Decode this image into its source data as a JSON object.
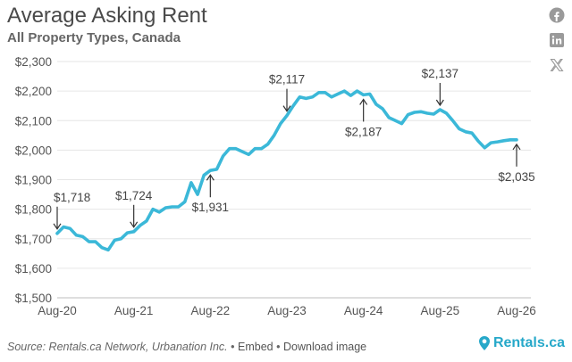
{
  "title": "Average Asking Rent",
  "subtitle": "All Property Types, Canada",
  "footer": {
    "source": "Source: Rentals.ca Network, Urbanation Inc.",
    "sep": "•",
    "embed": "Embed",
    "download": "Download image"
  },
  "brand": {
    "name": "Rentals.ca",
    "color": "#26a8c9"
  },
  "share_icons": [
    "facebook-icon",
    "linkedin-icon",
    "x-icon"
  ],
  "chart_data": {
    "type": "line",
    "xlabel": "",
    "ylabel": "",
    "ylim": [
      1500,
      2300
    ],
    "y_ticks": [
      1500,
      1600,
      1700,
      1800,
      1900,
      2000,
      2100,
      2200,
      2300
    ],
    "y_tick_labels": [
      "$1,500",
      "$1,600",
      "$1,700",
      "$1,800",
      "$1,900",
      "$2,000",
      "$2,100",
      "$2,200",
      "$2,300"
    ],
    "x_ticks": [
      "2020-08",
      "2021-08",
      "2022-08",
      "2023-08",
      "2024-08",
      "2025-08",
      "2026-08"
    ],
    "x_tick_labels": [
      "Aug-20",
      "Aug-21",
      "Aug-22",
      "Aug-23",
      "Aug-24",
      "Aug-25",
      "Aug-26"
    ],
    "grid": "horizontal",
    "line_color": "#3bb8d8",
    "series": [
      {
        "x": [
          "2020-08",
          "2020-09",
          "2020-10",
          "2020-11",
          "2020-12",
          "2021-01",
          "2021-02",
          "2021-03",
          "2021-04",
          "2021-05",
          "2021-06",
          "2021-07",
          "2021-08",
          "2021-09",
          "2021-10",
          "2021-11",
          "2021-12",
          "2022-01",
          "2022-02",
          "2022-03",
          "2022-04",
          "2022-05",
          "2022-06",
          "2022-07",
          "2022-08",
          "2022-09",
          "2022-10",
          "2022-11",
          "2022-12",
          "2023-01",
          "2023-02",
          "2023-03",
          "2023-04",
          "2023-05",
          "2023-06",
          "2023-07",
          "2023-08",
          "2023-09",
          "2023-10",
          "2023-11",
          "2023-12",
          "2024-01",
          "2024-02",
          "2024-03",
          "2024-04",
          "2024-05",
          "2024-06",
          "2024-07",
          "2024-08",
          "2024-09",
          "2024-10",
          "2024-11",
          "2024-12",
          "2025-01",
          "2025-02",
          "2025-03",
          "2025-04",
          "2025-05",
          "2025-06",
          "2025-07",
          "2025-08",
          "2025-09",
          "2025-10",
          "2025-11",
          "2025-12",
          "2026-01",
          "2026-02",
          "2026-03",
          "2026-04",
          "2026-05",
          "2026-06",
          "2026-07",
          "2026-08"
        ],
        "values": [
          1718,
          1740,
          1735,
          1712,
          1707,
          1690,
          1690,
          1670,
          1662,
          1695,
          1700,
          1720,
          1724,
          1745,
          1760,
          1800,
          1790,
          1805,
          1808,
          1808,
          1825,
          1890,
          1850,
          1915,
          1931,
          1935,
          1980,
          2005,
          2005,
          1995,
          1985,
          2005,
          2005,
          2020,
          2050,
          2090,
          2117,
          2150,
          2180,
          2175,
          2180,
          2195,
          2195,
          2180,
          2190,
          2200,
          2185,
          2200,
          2187,
          2190,
          2155,
          2140,
          2110,
          2100,
          2090,
          2120,
          2128,
          2130,
          2125,
          2122,
          2137,
          2125,
          2100,
          2072,
          2062,
          2058,
          2030,
          2008,
          2025,
          2028,
          2032,
          2035,
          2035
        ]
      }
    ],
    "annotations": [
      {
        "x": "2020-08",
        "value": 1718,
        "label": "$1,718",
        "position": "above"
      },
      {
        "x": "2021-08",
        "value": 1724,
        "label": "$1,724",
        "position": "above"
      },
      {
        "x": "2022-08",
        "value": 1931,
        "label": "$1,931",
        "position": "below"
      },
      {
        "x": "2023-08",
        "value": 2117,
        "label": "$2,117",
        "position": "above"
      },
      {
        "x": "2024-08",
        "value": 2187,
        "label": "$2,187",
        "position": "below"
      },
      {
        "x": "2025-08",
        "value": 2137,
        "label": "$2,137",
        "position": "above"
      },
      {
        "x": "2026-08",
        "value": 2035,
        "label": "$2,035",
        "position": "below"
      }
    ]
  }
}
